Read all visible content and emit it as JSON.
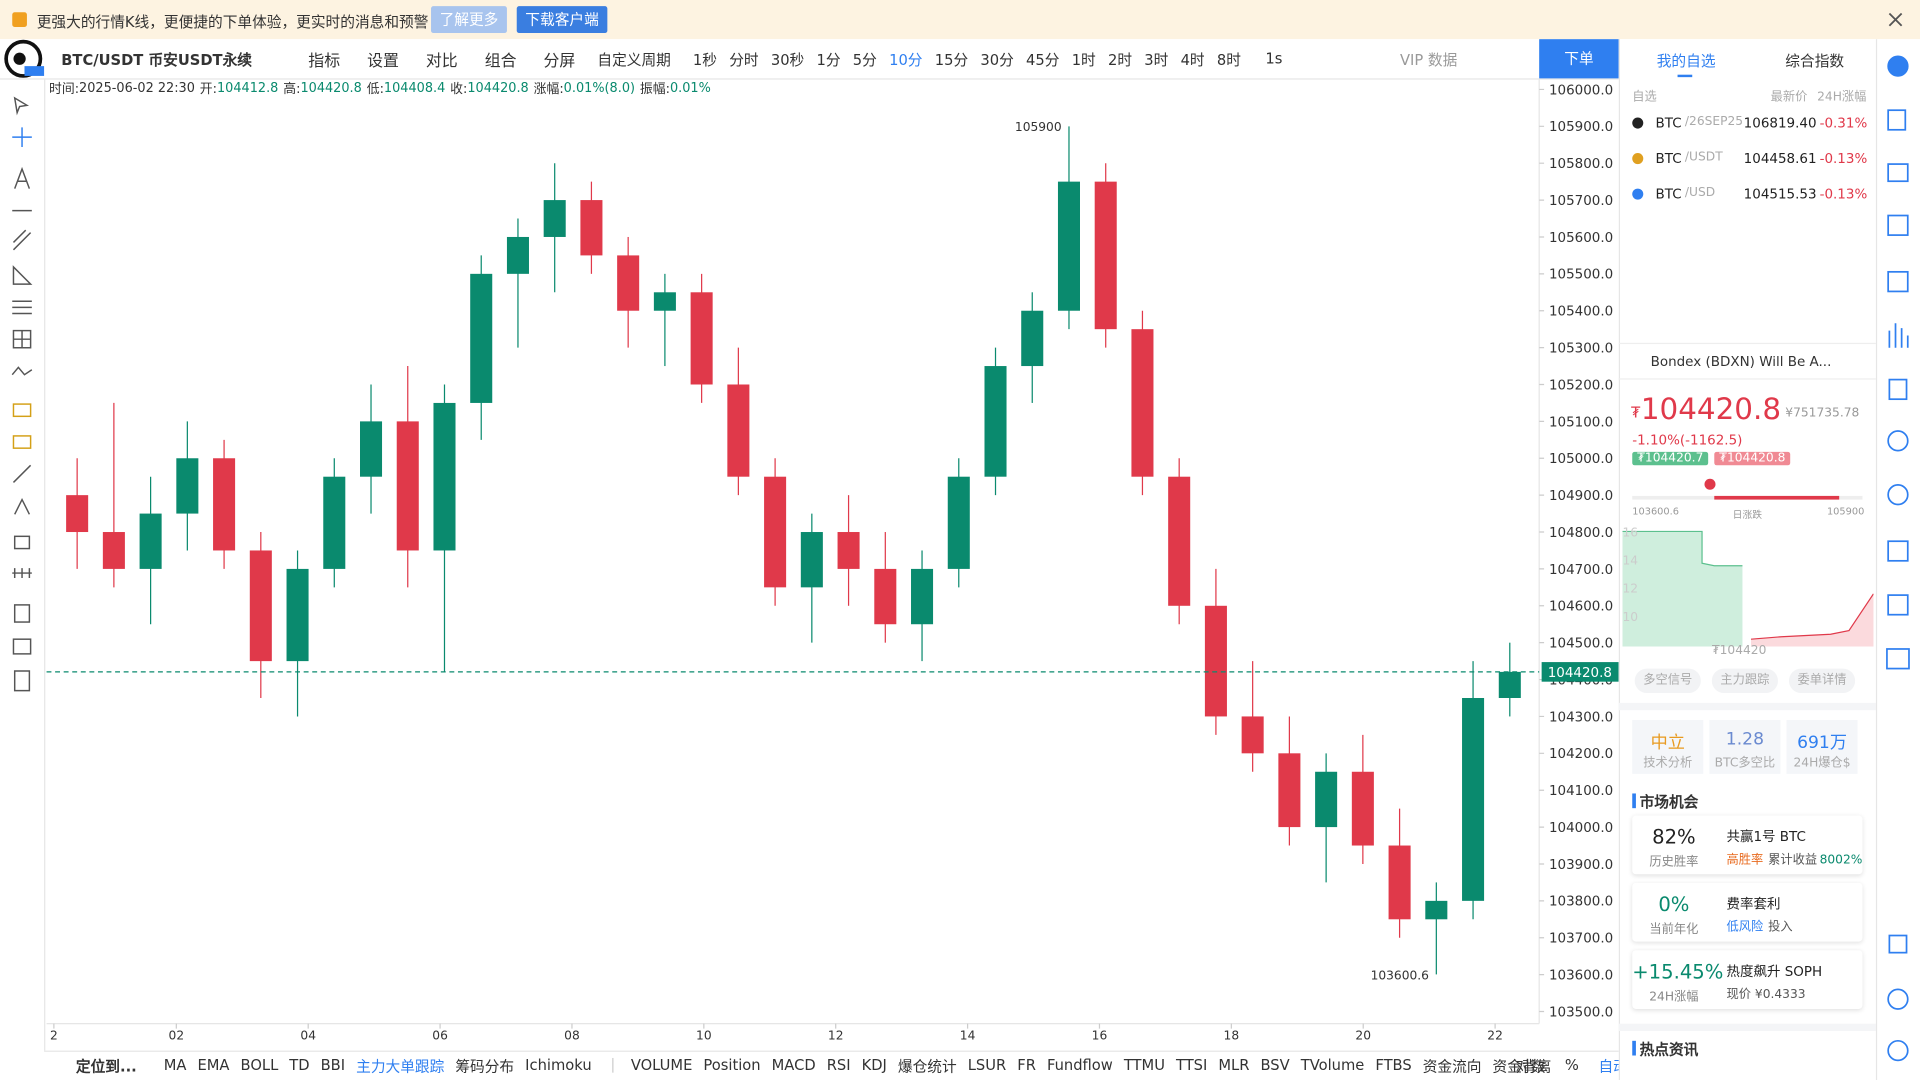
{
  "banner": {
    "text": "更强大的行情K线，更便捷的下单体验，更实时的消息和预警",
    "learn_more": "了解更多",
    "download": "下载客户端"
  },
  "toolbar": {
    "symbol": "BTC/USDT 币安USDT永续",
    "tools": [
      "指标",
      "设置",
      "对比",
      "组合",
      "分屏"
    ],
    "custom_period": "自定义周期",
    "periods": [
      "1秒",
      "分时",
      "30秒",
      "1分",
      "5分",
      "10分",
      "15分",
      "30分",
      "45分",
      "1时",
      "2时",
      "3时",
      "4时",
      "8时"
    ],
    "active_period_index": 5,
    "interval": "1s",
    "vip": "VIP 数据",
    "order": "下单"
  },
  "chart_data": {
    "type": "candlestick",
    "info": [
      {
        "label": "时间:",
        "value": "2025-06-02 22:30"
      },
      {
        "label": "开:",
        "value": "104412.8"
      },
      {
        "label": "高:",
        "value": "104420.8"
      },
      {
        "label": "低:",
        "value": "104408.4"
      },
      {
        "label": "收:",
        "value": "104420.8"
      },
      {
        "label": "涨幅:",
        "value": "0.01%(8.0)"
      },
      {
        "label": "振幅:",
        "value": "0.01%"
      }
    ],
    "candles": [
      [
        104900,
        105000,
        104700,
        104800
      ],
      [
        104800,
        105150,
        104650,
        104700
      ],
      [
        104700,
        104950,
        104550,
        104850
      ],
      [
        104850,
        105100,
        104750,
        105000
      ],
      [
        105000,
        105050,
        104700,
        104750
      ],
      [
        104750,
        104800,
        104350,
        104450
      ],
      [
        104450,
        104750,
        104300,
        104700
      ],
      [
        104700,
        105000,
        104650,
        104950
      ],
      [
        104950,
        105200,
        104850,
        105100
      ],
      [
        105100,
        105250,
        104650,
        104750
      ],
      [
        104750,
        105200,
        104420,
        105150
      ],
      [
        105150,
        105550,
        105050,
        105500
      ],
      [
        105500,
        105650,
        105300,
        105600
      ],
      [
        105600,
        105800,
        105450,
        105700
      ],
      [
        105700,
        105750,
        105500,
        105550
      ],
      [
        105550,
        105600,
        105300,
        105400
      ],
      [
        105400,
        105500,
        105250,
        105450
      ],
      [
        105450,
        105500,
        105150,
        105200
      ],
      [
        105200,
        105300,
        104900,
        104950
      ],
      [
        104950,
        105000,
        104600,
        104650
      ],
      [
        104650,
        104850,
        104500,
        104800
      ],
      [
        104800,
        104900,
        104600,
        104700
      ],
      [
        104700,
        104800,
        104500,
        104550
      ],
      [
        104550,
        104750,
        104450,
        104700
      ],
      [
        104700,
        105000,
        104650,
        104950
      ],
      [
        104950,
        105300,
        104900,
        105250
      ],
      [
        105250,
        105450,
        105150,
        105400
      ],
      [
        105400,
        105900,
        105350,
        105750
      ],
      [
        105750,
        105800,
        105300,
        105350
      ],
      [
        105350,
        105400,
        104900,
        104950
      ],
      [
        104950,
        105000,
        104550,
        104600
      ],
      [
        104600,
        104700,
        104250,
        104300
      ],
      [
        104300,
        104450,
        104150,
        104200
      ],
      [
        104200,
        104300,
        103950,
        104000
      ],
      [
        104000,
        104200,
        103850,
        104150
      ],
      [
        104150,
        104250,
        103900,
        103950
      ],
      [
        103950,
        104050,
        103700,
        103750
      ],
      [
        103750,
        103850,
        103600.6,
        103800
      ],
      [
        103800,
        104450,
        103750,
        104350
      ],
      [
        104350,
        104500,
        104300,
        104420.8
      ]
    ],
    "ylim": [
      103467,
      106030
    ],
    "yticks": [
      {
        "value": 103500,
        "label": "103500.0"
      },
      {
        "value": 103600,
        "label": "103600.0"
      },
      {
        "value": 103700,
        "label": "103700.0"
      },
      {
        "value": 103800,
        "label": "103800.0"
      },
      {
        "value": 103900,
        "label": "103900.0"
      },
      {
        "value": 104000,
        "label": "104000.0"
      },
      {
        "value": 104100,
        "label": "104100.0"
      },
      {
        "value": 104200,
        "label": "104200.0"
      },
      {
        "value": 104300,
        "label": "104300.0"
      },
      {
        "value": 104400,
        "label": "104400.0"
      },
      {
        "value": 104500,
        "label": "104500.0"
      },
      {
        "value": 104600,
        "label": "104600.0"
      },
      {
        "value": 104700,
        "label": "104700.0"
      },
      {
        "value": 104800,
        "label": "104800.0"
      },
      {
        "value": 104900,
        "label": "104900.0"
      },
      {
        "value": 105000,
        "label": "105000.0"
      },
      {
        "value": 105100,
        "label": "105100.0"
      },
      {
        "value": 105200,
        "label": "105200.0"
      },
      {
        "value": 105300,
        "label": "105300.0"
      },
      {
        "value": 105400,
        "label": "105400.0"
      },
      {
        "value": 105500,
        "label": "105500.0"
      },
      {
        "value": 105600,
        "label": "105600.0"
      },
      {
        "value": 105700,
        "label": "105700.0"
      },
      {
        "value": 105800,
        "label": "105800.0"
      },
      {
        "value": 105900,
        "label": "105900.0"
      },
      {
        "value": 106000,
        "label": "106000.0"
      }
    ],
    "xticks": [
      "2",
      "02",
      "04",
      "06",
      "08",
      "10",
      "12",
      "14",
      "16",
      "18",
      "20",
      "22"
    ],
    "last_price": 104420.8,
    "high_marker": 105900,
    "low_marker": 103600.6,
    "up_color": "#0a8a6e",
    "down_color": "#e0394a"
  },
  "right_panel": {
    "tabs": [
      "我的自选",
      "综合指数"
    ],
    "headers": [
      "自选",
      "最新价",
      "24H涨幅"
    ],
    "rows": [
      {
        "base": "BTC",
        "quote": "/26SEP25",
        "price": "106819.40",
        "change": "-0.31%"
      },
      {
        "base": "BTC",
        "quote": "/USDT",
        "price": "104458.61",
        "change": "-0.13%"
      },
      {
        "base": "BTC",
        "quote": "/USD",
        "price": "104515.53",
        "change": "-0.13%"
      }
    ],
    "news": "Bondex (BDXN) Will Be A...",
    "currency": "₮",
    "price": "104420.8",
    "price_cny": "¥751735.78",
    "change": "-1.10%(-1162.5)",
    "bid": "₮104420.7",
    "ask": "₮104420.8",
    "range_low": "103600.6",
    "range_label": "日涨跌",
    "range_high": "105900",
    "depth_ticks": [
      "16",
      "14",
      "12",
      "10"
    ],
    "depth_price": "₮104420",
    "buttons": [
      "多空信号",
      "主力跟踪",
      "委单详情"
    ],
    "stats": [
      {
        "value": "中立",
        "label": "技术分析"
      },
      {
        "value": "1.28",
        "label": "BTC多空比"
      },
      {
        "value": "691万",
        "label": "24H爆仓$"
      }
    ],
    "opportunity_title": "市场机会",
    "cards": [
      {
        "value": "82%",
        "label": "历史胜率",
        "title": "共赢1号 BTC",
        "tag": "高胜率",
        "desc": "累计收益",
        "extra": "8002%"
      },
      {
        "value": "0%",
        "label": "当前年化",
        "title": "费率套利",
        "tag": "低风险",
        "desc": "投入",
        "extra": ""
      },
      {
        "value": "+15.45%",
        "label": "24H涨幅",
        "title": "热度飙升 SOPH",
        "tag": "",
        "desc": "现价 ¥0.4333",
        "extra": ""
      }
    ],
    "hot_title": "热点资讯"
  },
  "bottom_bar": {
    "locate": "定位到...",
    "main_indicators": [
      "MA",
      "EMA",
      "BOLL",
      "TD",
      "BBI",
      "主力大单跟踪",
      "筹码分布",
      "Ichimoku"
    ],
    "sub_indicators": [
      "VOLUME",
      "Position",
      "MACD",
      "RSI",
      "KDJ",
      "爆仓统计",
      "LSUR",
      "FR",
      "Fundflow",
      "TTMU",
      "TTSI",
      "MLR",
      "BSV",
      "TVolume",
      "FTBS",
      "资金流向",
      "资金背离"
    ],
    "scale_options": [
      "对数",
      "%",
      "自动"
    ]
  }
}
